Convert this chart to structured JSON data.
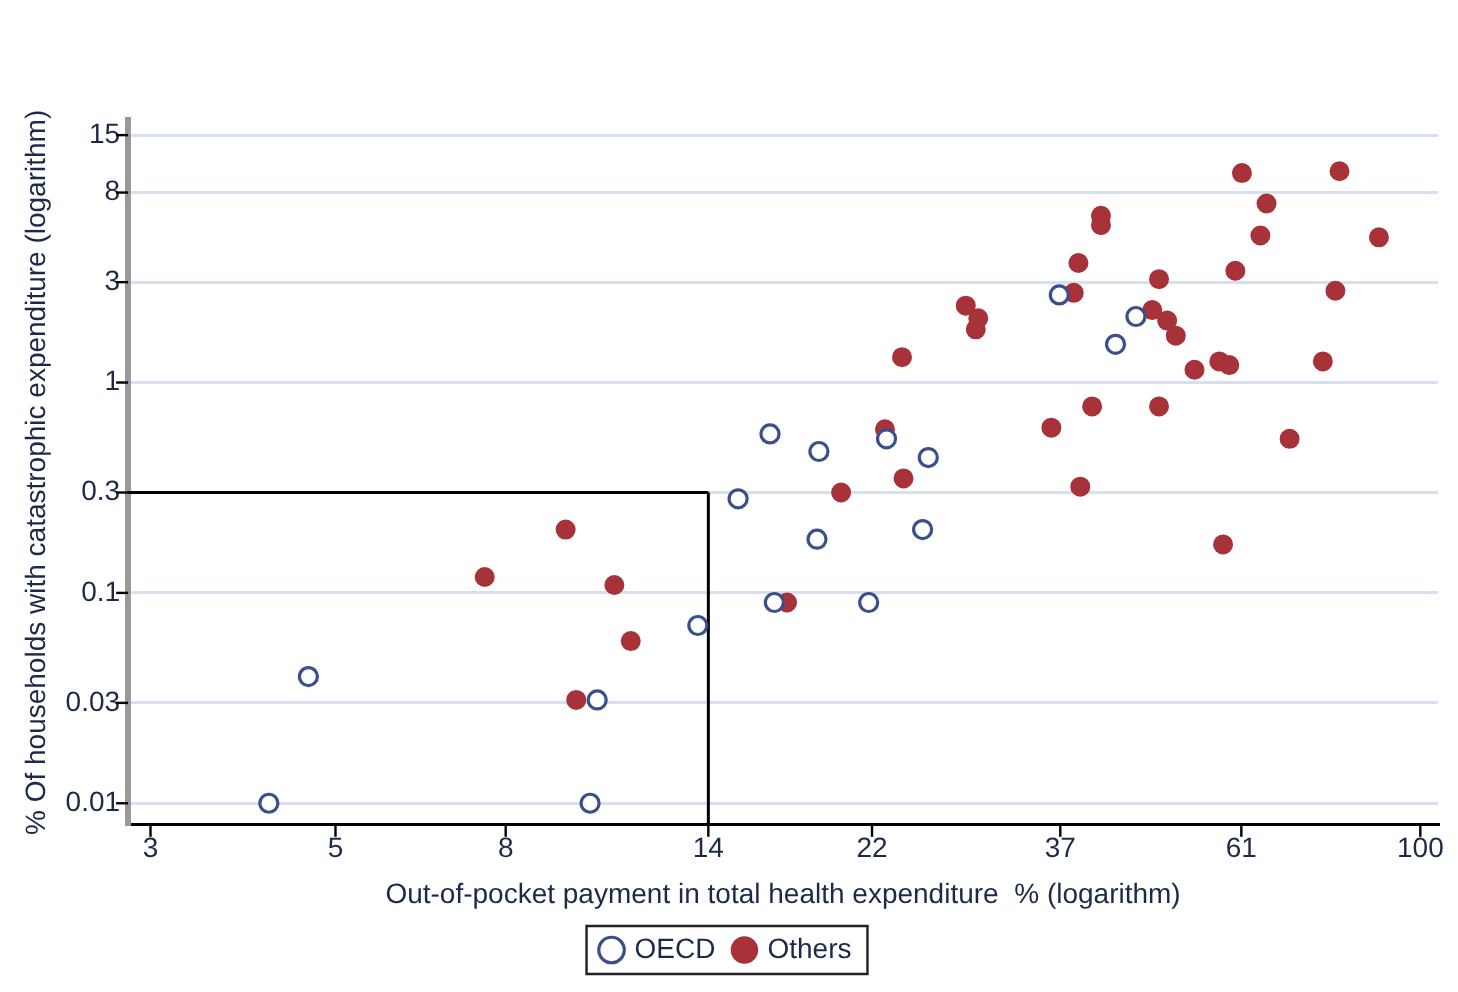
{
  "chart_data": {
    "type": "scatter",
    "xlabel": "Out-of-pocket payment in total health expenditure  % (logarithm)",
    "ylabel": "% Of households with catastrophic expenditure (logarithm)",
    "log": "xy",
    "grid": "y",
    "legend": "bottom",
    "xlim": [
      2.82,
      105
    ],
    "ylim": [
      0.0079,
      17.7
    ],
    "xticks": [
      3,
      5,
      8,
      14,
      22,
      37,
      61,
      100
    ],
    "yticks": [
      0.01,
      0.03,
      0.1,
      0.3,
      1,
      3,
      8,
      15
    ],
    "ref_lines": [
      {
        "axis": "x",
        "value": 14,
        "color": "#000000"
      },
      {
        "axis": "y",
        "value": 0.3,
        "color": "#000000"
      }
    ],
    "series": [
      {
        "name": "OECD",
        "color": "#3b4f8c",
        "marker": "open circle",
        "x": [
          15.2,
          13.6,
          4.64,
          10.3,
          4.16,
          10.1,
          16.6,
          19.0,
          22.9,
          25.7,
          18.9,
          25.3,
          16.8,
          21.8,
          36.9,
          45.6,
          43.1
        ],
        "values": [
          0.28,
          0.07,
          0.04,
          0.031,
          0.01,
          0.01,
          0.57,
          0.47,
          0.54,
          0.44,
          0.18,
          0.2,
          0.09,
          0.09,
          2.61,
          2.06,
          1.52
        ]
      },
      {
        "name": "Others",
        "color": "#a8323a",
        "marker": "circle",
        "x": [
          9.44,
          7.55,
          10.8,
          11.3,
          9.72,
          20.2,
          22.8,
          24.0,
          17.4,
          36.1,
          40.4,
          48.6,
          39.1,
          69.7,
          58.0,
          61.1,
          80.0,
          65.4,
          41.4,
          41.4,
          64.3,
          89.2,
          38.9,
          48.6,
          60.0,
          38.4,
          79.1,
          28.5,
          29.5,
          29.3,
          47.7,
          49.7,
          50.9,
          53.6,
          57.4,
          59.0,
          76.4,
          23.9
        ],
        "values": [
          0.2,
          0.119,
          0.109,
          0.059,
          0.031,
          0.3,
          0.6,
          0.35,
          0.09,
          0.61,
          0.77,
          0.77,
          0.32,
          0.54,
          0.17,
          9.9,
          10.1,
          7.1,
          6.2,
          5.6,
          5.0,
          4.9,
          3.7,
          3.1,
          3.4,
          2.67,
          2.73,
          2.32,
          2.02,
          1.79,
          2.21,
          1.97,
          1.67,
          1.15,
          1.26,
          1.21,
          1.26,
          1.32
        ]
      }
    ]
  }
}
